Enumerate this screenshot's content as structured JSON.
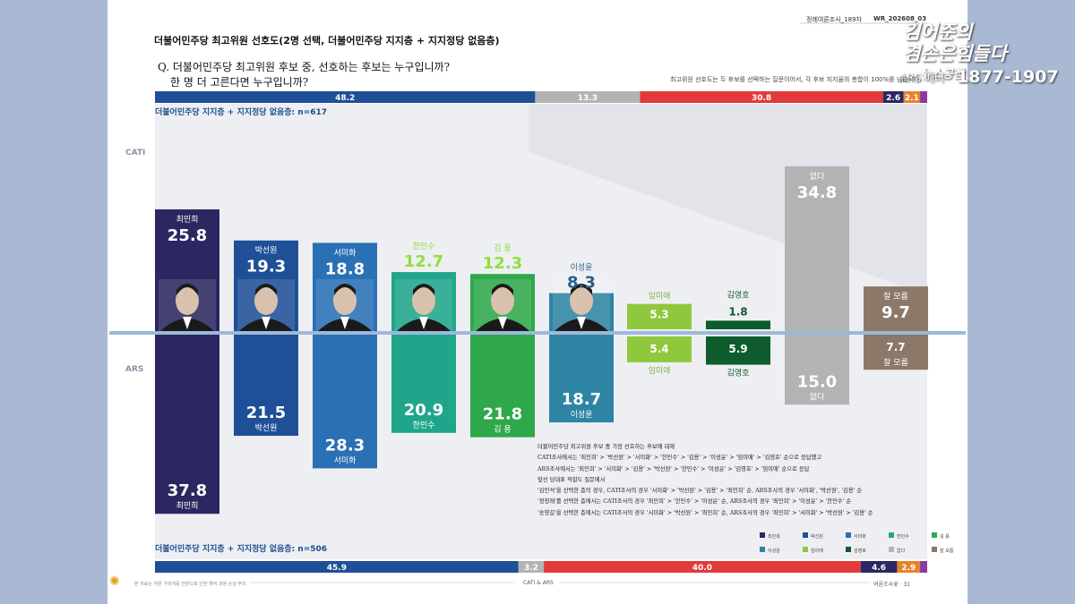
{
  "header": {
    "issue": "정례여론조사_189차",
    "code": "WR_202608_03"
  },
  "watermark": {
    "line1": "김어준의",
    "line2": "겸손은힘들다",
    "line3": "뉴스공장",
    "line4": "ARS 배너",
    "line5": "1877-1907"
  },
  "title": "더불어민주당 최고위원 선호도(2명 선택, 더불어민주당 지지층 + 지지정당 없음층)",
  "question_line1": "Q. 더불어민주당 최고위원 후보 중, 선호하는 후보는 누구입니까?",
  "question_line2": "한 명 더 고른다면 누구입니까?",
  "note": "최고위원 선호도는 두 후보를 선택하는 질문이어서, 각 후보 지지율의 총합이 100%를 넘습니다.",
  "methods": {
    "top": "CATI",
    "bottom": "ARS"
  },
  "samples": {
    "top": "더불어민주당 지지층 + 지지정당 없음층: n=617",
    "bottom": "더불어민주당 지지층 + 지지정당 없음층: n=506"
  },
  "chart_data": {
    "type": "bar",
    "title": "더불어민주당 최고위원 선호도",
    "categories": [
      "최민희",
      "박선원",
      "서미화",
      "한민수",
      "김 용",
      "이성윤",
      "임미애",
      "김영호",
      "없다",
      "잘 모름"
    ],
    "series": [
      {
        "name": "CATI",
        "values": [
          25.8,
          19.3,
          18.8,
          12.7,
          12.3,
          8.3,
          5.3,
          1.8,
          34.8,
          9.7
        ]
      },
      {
        "name": "ARS",
        "values": [
          37.8,
          21.5,
          28.3,
          20.9,
          21.8,
          18.7,
          5.4,
          5.9,
          15.0,
          7.7
        ]
      }
    ],
    "value_labels": {
      "CATI": [
        "25.8",
        "19.3",
        "18.8",
        "12.7",
        "12.3",
        "8.3",
        "5.3",
        "1.8",
        "34.8",
        "9.7"
      ],
      "ARS": [
        "37.8",
        "21.5",
        "28.3",
        "20.9",
        "21.8",
        "18.7",
        "5.4",
        "5.9",
        "15.0",
        "7.7"
      ]
    },
    "colors": [
      "#2c2760",
      "#1f4f97",
      "#2a70b5",
      "#1fa68a",
      "#2ea84a",
      "#2e84a3",
      "#8fc83c",
      "#0e5c2c",
      "#b3b3b3",
      "#8c7869"
    ],
    "name_colors": [
      "#ffffff",
      "#ffffff",
      "#ffffff",
      "#8fe03a",
      "#8fe03a",
      "#2a5f88",
      "#7cb342",
      "#0e5c2c",
      "#ffffff",
      "#ffffff"
    ],
    "baseline_color": "#9db8da",
    "stacked_top": {
      "values": [
        48.2,
        13.3,
        30.8,
        2.6,
        2.1
      ],
      "labels": [
        "48.2",
        "13.3",
        "30.8",
        "2.6",
        "2.1"
      ],
      "colors": [
        "#1f4f97",
        "#b3b3b3",
        "#e23a3a",
        "#2c2760",
        "#e8832a",
        "#8a3aa0"
      ]
    },
    "stacked_bottom": {
      "values": [
        45.9,
        3.2,
        40.0,
        4.6,
        2.9
      ],
      "labels": [
        "45.9",
        "3.2",
        "40.0",
        "4.6",
        "2.9"
      ],
      "colors": [
        "#1f4f97",
        "#b3b3b3",
        "#e23a3a",
        "#2c2760",
        "#e8832a",
        "#8a3aa0"
      ]
    },
    "legend_position": "bottom-right",
    "legend": [
      "최민희",
      "박선원",
      "서미화",
      "한민수",
      "김 용",
      "이성윤",
      "임미애",
      "김영호",
      "없다",
      "잘 모름"
    ]
  },
  "explain_lines": [
    "더불어민주당 최고위원 후보 중 가장 선호하는 후보에 대해",
    "CATI조사에서는 '최민희' > '박선원' > '서미화' > '한민수' > '김용' > '이성윤' > '임미애' > '김영호' 순으로 응답했고",
    "ARS조사에서는 '최민희' > '서미화' > '김용' > '박선원' > '한민수' > '이성윤' > '김영호' > '임미애' 순으로 응답",
    "앞선 당대표 적합도 질문에서",
    "'김민석'을 선택한 층의 경우, CATI조사의 경우 '서미화' > '박선원' > '김용' > '최민희' 순, ARS조사의 경우 '서미화', '박선원', '김용' 순",
    "'정청래'를 선택한 층에서는 CATI조사의 경우 '최민희' > '한민수' > '이성윤' 순, ARS조사의 경우 '최민희' > '이성윤' > '한민수' 순",
    "'송영길'을 선택한 층에서는 CATI조사의 경우 '서미화' > '박선원' > '최민희' 순, ARS조사의 경우 '최민희' > '서미화' > '박선원' > '김용' 순"
  ],
  "footer": {
    "left": "본 자료는 여론 가락지를 전반으로 인한 해석 과정 손실 주의",
    "mid": "CATI & ARS",
    "right": "여론조사꽃 · 31"
  }
}
